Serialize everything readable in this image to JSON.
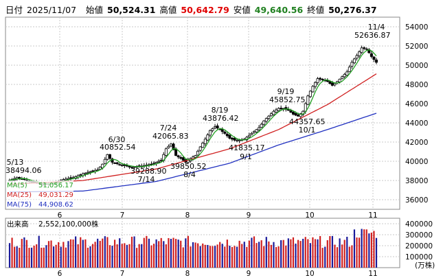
{
  "header": {
    "date_label": "日付",
    "date": "2025/11/07",
    "open_label": "始値",
    "open": "50,524.31",
    "high_label": "高値",
    "high": "50,642.79",
    "low_label": "安値",
    "low": "49,640.56",
    "close_label": "終値",
    "close": "50,276.37"
  },
  "colors": {
    "up": "#000000",
    "down": "#000000",
    "high_value": "#e00000",
    "low_value": "#208020",
    "ma5": "#22a022",
    "ma25": "#d02020",
    "ma75": "#2030c0",
    "vol_blue": "#1a1a9a",
    "vol_red": "#d02020",
    "grid": "#c8c8c8"
  },
  "chart_data": [
    {
      "type": "candlestick",
      "title": "",
      "y_ticks": [
        "54000",
        "52000",
        "50000",
        "48000",
        "46000",
        "44000",
        "42000",
        "40000",
        "38000",
        "36000"
      ],
      "ylim": [
        35000,
        55000
      ],
      "x_ticks": [
        "6",
        "7",
        "8",
        "9",
        "10",
        "11"
      ],
      "legend": [
        {
          "name": "MA(5)",
          "value": "51,056.17"
        },
        {
          "name": "MA(25)",
          "value": "49,031.29"
        },
        {
          "name": "MA(75)",
          "value": "44,908.62"
        }
      ],
      "annotations": [
        {
          "label": "5/13",
          "value": "38494.06",
          "kind": "low"
        },
        {
          "label": "6/30",
          "value": "40852.54",
          "kind": "high"
        },
        {
          "label": "7/14",
          "value": "39288.90",
          "kind": "low"
        },
        {
          "label": "7/24",
          "value": "42065.83",
          "kind": "high"
        },
        {
          "label": "8/4",
          "value": "39850.52",
          "kind": "low"
        },
        {
          "label": "8/19",
          "value": "43876.42",
          "kind": "high"
        },
        {
          "label": "9/1",
          "value": "41835.17",
          "kind": "low"
        },
        {
          "label": "9/19",
          "value": "45852.75",
          "kind": "high"
        },
        {
          "label": "10/1",
          "value": "44357.65",
          "kind": "low"
        },
        {
          "label": "11/4",
          "value": "52636.87",
          "kind": "high"
        }
      ],
      "waypoints": [
        [
          0,
          38000
        ],
        [
          3,
          38300
        ],
        [
          6,
          38100
        ],
        [
          10,
          37800
        ],
        [
          14,
          37600
        ],
        [
          18,
          37700
        ],
        [
          22,
          38100
        ],
        [
          26,
          38300
        ],
        [
          30,
          38700
        ],
        [
          34,
          39000
        ],
        [
          36,
          39100
        ],
        [
          38,
          39700
        ],
        [
          40,
          40700
        ],
        [
          42,
          39900
        ],
        [
          46,
          39600
        ],
        [
          50,
          39400
        ],
        [
          54,
          39500
        ],
        [
          58,
          39700
        ],
        [
          62,
          40100
        ],
        [
          64,
          41300
        ],
        [
          66,
          41800
        ],
        [
          68,
          40600
        ],
        [
          70,
          40300
        ],
        [
          72,
          39900
        ],
        [
          74,
          40300
        ],
        [
          76,
          40600
        ],
        [
          78,
          41500
        ],
        [
          80,
          42300
        ],
        [
          82,
          43200
        ],
        [
          84,
          43600
        ],
        [
          86,
          43300
        ],
        [
          88,
          42900
        ],
        [
          90,
          42400
        ],
        [
          92,
          42200
        ],
        [
          94,
          42200
        ],
        [
          96,
          42300
        ],
        [
          98,
          42700
        ],
        [
          100,
          43100
        ],
        [
          102,
          43500
        ],
        [
          104,
          44200
        ],
        [
          106,
          44700
        ],
        [
          108,
          45200
        ],
        [
          110,
          45500
        ],
        [
          112,
          45500
        ],
        [
          114,
          45300
        ],
        [
          116,
          44900
        ],
        [
          118,
          44700
        ],
        [
          120,
          45200
        ],
        [
          122,
          46800
        ],
        [
          124,
          47800
        ],
        [
          126,
          48600
        ],
        [
          128,
          48500
        ],
        [
          130,
          48300
        ],
        [
          132,
          47900
        ],
        [
          134,
          48300
        ],
        [
          136,
          48800
        ],
        [
          138,
          49300
        ],
        [
          140,
          50300
        ],
        [
          142,
          51000
        ],
        [
          144,
          51800
        ],
        [
          146,
          51700
        ],
        [
          148,
          50900
        ],
        [
          150,
          50300
        ]
      ],
      "ma25": [
        [
          0,
          37600
        ],
        [
          30,
          38000
        ],
        [
          60,
          39200
        ],
        [
          90,
          41300
        ],
        [
          110,
          43300
        ],
        [
          130,
          45900
        ],
        [
          150,
          49100
        ]
      ],
      "ma75": [
        [
          0,
          36800
        ],
        [
          30,
          36900
        ],
        [
          60,
          37900
        ],
        [
          90,
          39800
        ],
        [
          110,
          41700
        ],
        [
          130,
          43300
        ],
        [
          150,
          45000
        ]
      ]
    },
    {
      "type": "bar",
      "title": "",
      "label": "出来高",
      "latest": "2,552,100,000株",
      "unit": "(万株)",
      "y_ticks": [
        "400000",
        "300000",
        "200000",
        "100000"
      ],
      "ylim": [
        0,
        450000
      ],
      "x_ticks": [
        "6",
        "7",
        "8",
        "9",
        "10",
        "11"
      ]
    }
  ]
}
